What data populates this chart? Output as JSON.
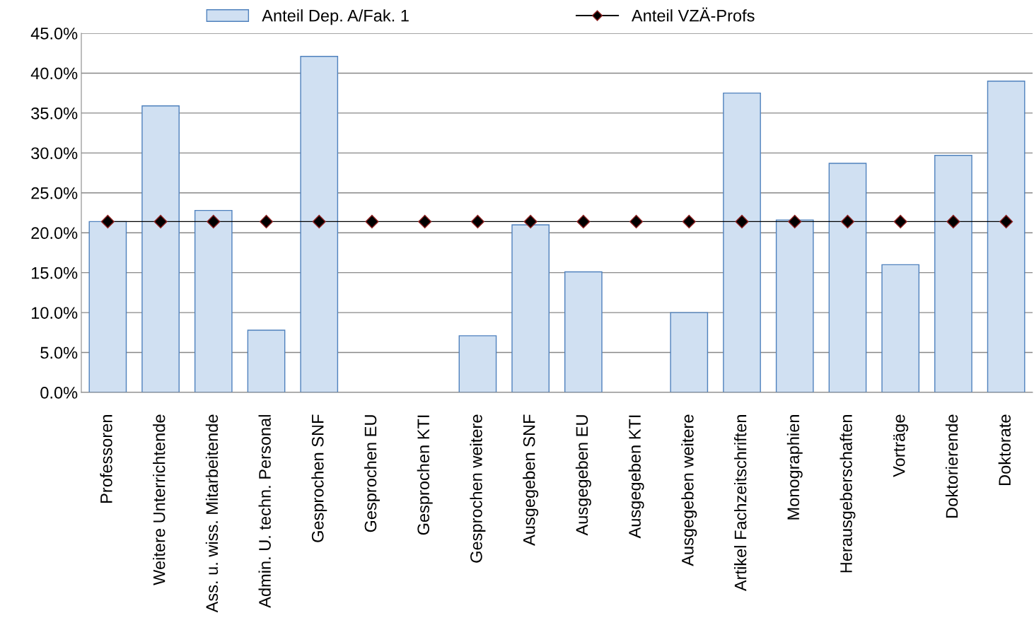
{
  "chart_data": {
    "type": "bar",
    "categories": [
      "Professoren",
      "Weitere Unterrichtende",
      "Ass. u. wiss. Mitarbeitende",
      "Admin. U. techn. Personal",
      "Gesprochen SNF",
      "Gesprochen EU",
      "Gesprochen KTI",
      "Gesprochen weitere",
      "Ausgegeben SNF",
      "Ausgegeben EU",
      "Ausgegeben KTI",
      "Ausgegeben weitere",
      "Artikel Fachzeitschriften",
      "Monographien",
      "Herausgeberschaften",
      "Vorträge",
      "Doktorierende",
      "Doktorate"
    ],
    "series": [
      {
        "name": "Anteil Dep. A/Fak. 1",
        "color": "#d0e0f2",
        "values": [
          21.4,
          35.9,
          22.8,
          7.8,
          42.1,
          0,
          0,
          7.1,
          21.0,
          15.1,
          0,
          10.0,
          37.5,
          21.6,
          28.7,
          16.0,
          29.7,
          39.0
        ]
      },
      {
        "name": "Anteil VZÄ-Profs",
        "type": "line",
        "color": "#000000",
        "marker": "diamond",
        "values": [
          21.4,
          21.4,
          21.4,
          21.4,
          21.4,
          21.4,
          21.4,
          21.4,
          21.4,
          21.4,
          21.4,
          21.4,
          21.4,
          21.4,
          21.4,
          21.4,
          21.4,
          21.4
        ]
      }
    ],
    "ylim": [
      0,
      45
    ],
    "yticks": [
      {
        "value": 0,
        "label": "0.0%"
      },
      {
        "value": 5,
        "label": "5.0%"
      },
      {
        "value": 10,
        "label": "10.0%"
      },
      {
        "value": 15,
        "label": "15.0%"
      },
      {
        "value": 20,
        "label": "20.0%"
      },
      {
        "value": 25,
        "label": "25.0%"
      },
      {
        "value": 30,
        "label": "30.0%"
      },
      {
        "value": 35,
        "label": "35.0%"
      },
      {
        "value": 40,
        "label": "40.0%"
      },
      {
        "value": 45,
        "label": "45.0%"
      }
    ],
    "grid": "y",
    "legend": "top"
  }
}
